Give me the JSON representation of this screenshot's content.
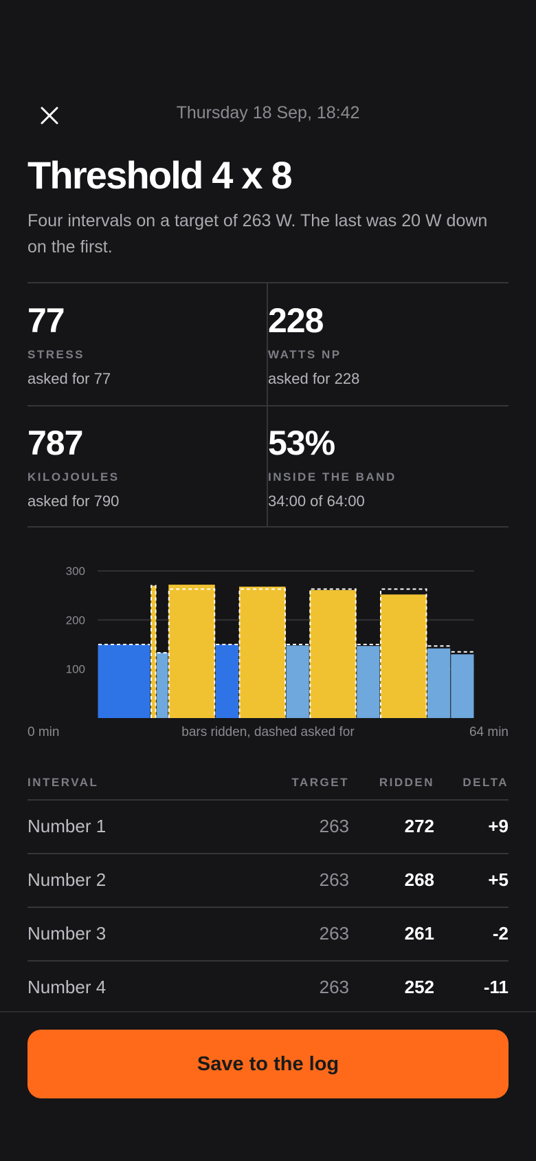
{
  "header": {
    "datetime": "Thursday 18 Sep, 18:42",
    "close_icon": "close-icon"
  },
  "workout": {
    "title": "Threshold 4 x 8",
    "summary": "Four intervals on a target of 263 W. The last was 20 W down on the first."
  },
  "stats": [
    {
      "value": "77",
      "label": "STRESS",
      "note": "asked for 77"
    },
    {
      "value": "228",
      "label": "WATTS NP",
      "note": "asked for 228"
    },
    {
      "value": "787",
      "label": "KILOJOULES",
      "note": "asked for 790"
    },
    {
      "value": "53%",
      "label": "INSIDE THE BAND",
      "note": "34:00 of 64:00"
    }
  ],
  "chart_data": {
    "type": "bar",
    "y_ticks": [
      "300",
      "200",
      "100"
    ],
    "ylim": [
      0,
      300
    ],
    "x_range": [
      0,
      64
    ],
    "x_start_label": "0 min",
    "x_end_label": "64 min",
    "caption": "bars ridden, dashed asked for",
    "grid": true,
    "colors": {
      "warmup": "#2f74e6",
      "work": "#f0c232",
      "recovery": "#6fa8dc",
      "target": "#ffffff"
    },
    "segments": [
      {
        "start": 0,
        "end": 9,
        "ridden": 150,
        "asked": 150,
        "kind": "warmup"
      },
      {
        "start": 9,
        "end": 10,
        "ridden": 270,
        "asked": 270,
        "kind": "work"
      },
      {
        "start": 10,
        "end": 12,
        "ridden": 133,
        "asked": 133,
        "kind": "recovery"
      },
      {
        "start": 12,
        "end": 20,
        "ridden": 272,
        "asked": 263,
        "kind": "work"
      },
      {
        "start": 20,
        "end": 24,
        "ridden": 150,
        "asked": 150,
        "kind": "warmup"
      },
      {
        "start": 24,
        "end": 32,
        "ridden": 268,
        "asked": 263,
        "kind": "work"
      },
      {
        "start": 32,
        "end": 36,
        "ridden": 148,
        "asked": 150,
        "kind": "recovery"
      },
      {
        "start": 36,
        "end": 44,
        "ridden": 261,
        "asked": 263,
        "kind": "work"
      },
      {
        "start": 44,
        "end": 48,
        "ridden": 147,
        "asked": 150,
        "kind": "recovery"
      },
      {
        "start": 48,
        "end": 56,
        "ridden": 252,
        "asked": 263,
        "kind": "work"
      },
      {
        "start": 56,
        "end": 60,
        "ridden": 142,
        "asked": 147,
        "kind": "recovery"
      },
      {
        "start": 60,
        "end": 64,
        "ridden": 130,
        "asked": 135,
        "kind": "recovery"
      }
    ]
  },
  "table": {
    "headers": {
      "interval": "INTERVAL",
      "target": "TARGET",
      "ridden": "RIDDEN",
      "delta": "DELTA"
    },
    "rows": [
      {
        "name": "Number 1",
        "target": "263",
        "ridden": "272",
        "delta": "+9"
      },
      {
        "name": "Number 2",
        "target": "263",
        "ridden": "268",
        "delta": "+5"
      },
      {
        "name": "Number 3",
        "target": "263",
        "ridden": "261",
        "delta": "-2"
      },
      {
        "name": "Number 4",
        "target": "263",
        "ridden": "252",
        "delta": "-11"
      }
    ]
  },
  "footer": {
    "save_label": "Save to the log"
  }
}
